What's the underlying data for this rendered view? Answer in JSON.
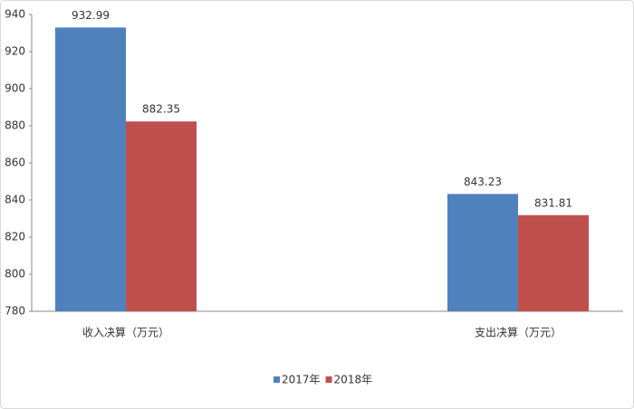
{
  "chart_data": {
    "type": "bar",
    "categories": [
      "收入决算（万元）",
      "支出决算（万元）"
    ],
    "series": [
      {
        "name": "2017年",
        "color": "#4f81bd",
        "values": [
          932.99,
          843.23
        ]
      },
      {
        "name": "2018年",
        "color": "#c0504d",
        "values": [
          882.35,
          831.81
        ]
      }
    ],
    "ylim": [
      780,
      940
    ],
    "yticks": [
      780,
      800,
      820,
      840,
      860,
      880,
      900,
      920,
      940
    ],
    "grid": false,
    "legend": "bottom"
  }
}
